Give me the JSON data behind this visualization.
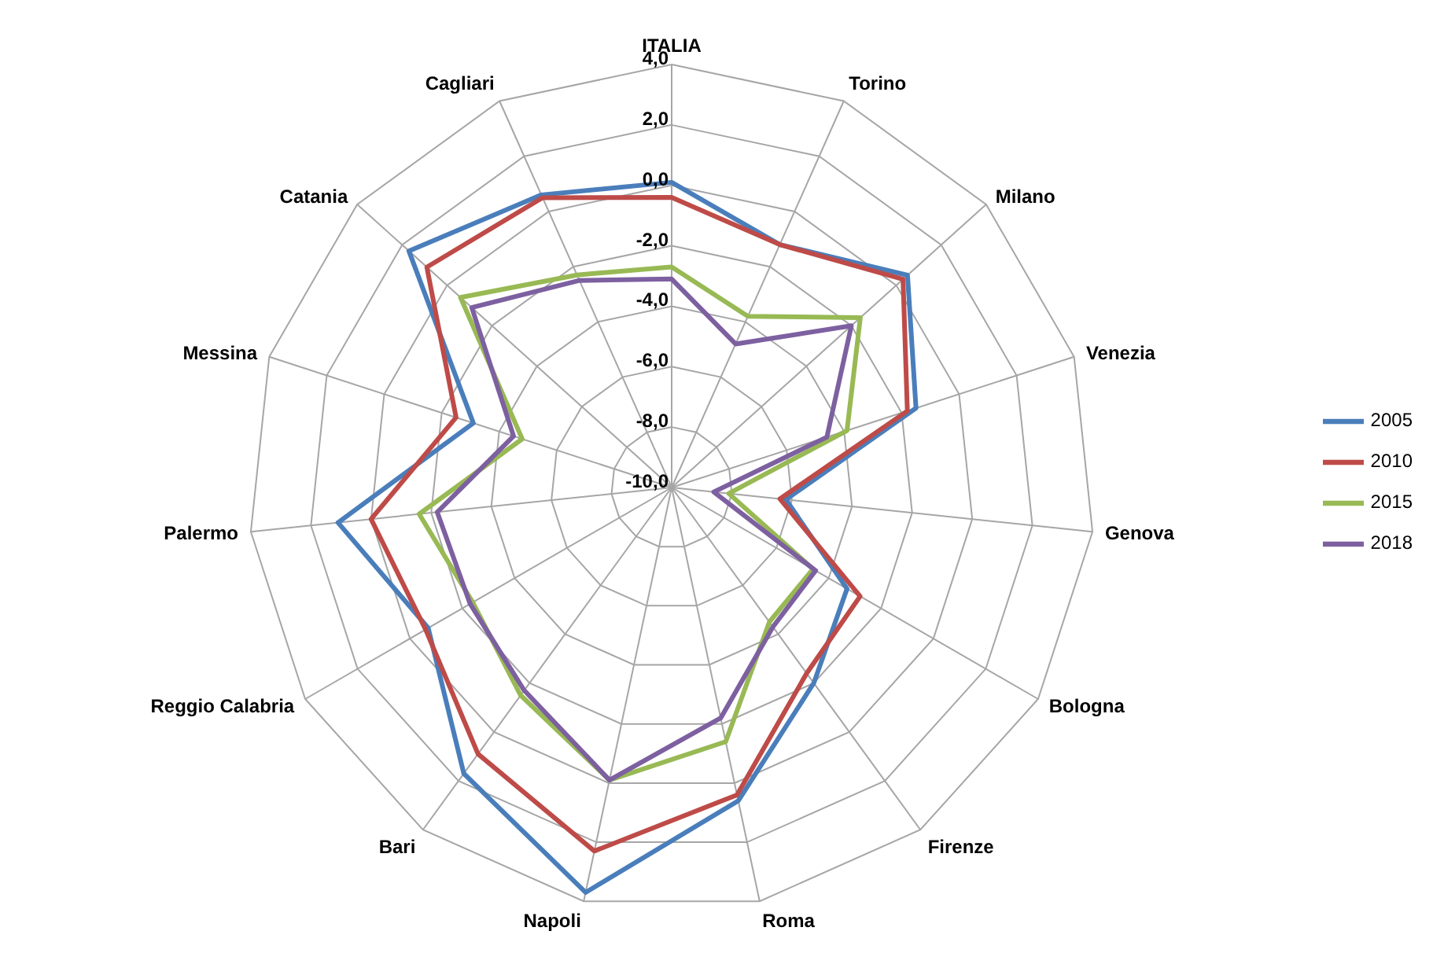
{
  "chart_data": {
    "type": "radar",
    "categories": [
      "ITALIA",
      "Torino",
      "Milano",
      "Venezia",
      "Genova",
      "Bologna",
      "Firenze",
      "Roma",
      "Napoli",
      "Bari",
      "Reggio Calabria",
      "Palermo",
      "Messina",
      "Catania",
      "Cagliari"
    ],
    "series": [
      {
        "name": "2005",
        "color": "#4a7ebb",
        "values": [
          0.1,
          -1.2,
          0.5,
          -1.5,
          -6.2,
          -3.3,
          -2.0,
          0.6,
          3.7,
          1.7,
          -0.7,
          1.1,
          -3.1,
          1.7,
          0.6
        ]
      },
      {
        "name": "2010",
        "color": "#be4b48",
        "values": [
          -0.4,
          -1.2,
          0.3,
          -1.8,
          -6.4,
          -2.8,
          -2.4,
          0.4,
          2.3,
          0.9,
          -0.6,
          0.0,
          -2.5,
          0.9,
          0.5
        ]
      },
      {
        "name": "2015",
        "color": "#98b954",
        "values": [
          -2.7,
          -3.8,
          -1.6,
          -3.9,
          -8.1,
          -4.6,
          -4.5,
          -1.4,
          -0.1,
          -1.5,
          -2.4,
          -1.6,
          -4.8,
          -0.6,
          -2.3
        ]
      },
      {
        "name": "2018",
        "color": "#7d60a0",
        "values": [
          -3.1,
          -4.8,
          -2.0,
          -4.6,
          -8.6,
          -4.5,
          -4.3,
          -2.2,
          -0.1,
          -1.7,
          -2.3,
          -2.2,
          -4.5,
          -1.1,
          -2.5
        ]
      }
    ],
    "ylim": [
      -10,
      4
    ],
    "yticks": [
      {
        "value": -10,
        "label": "-10,0"
      },
      {
        "value": -8,
        "label": "-8,0"
      },
      {
        "value": -6,
        "label": "-6,0"
      },
      {
        "value": -4,
        "label": "-4,0"
      },
      {
        "value": -2,
        "label": "-2,0"
      },
      {
        "value": 0,
        "label": "0,0"
      },
      {
        "value": 2,
        "label": "2,0"
      },
      {
        "value": 4,
        "label": "4,0"
      }
    ],
    "grid": true,
    "legend": "right"
  }
}
